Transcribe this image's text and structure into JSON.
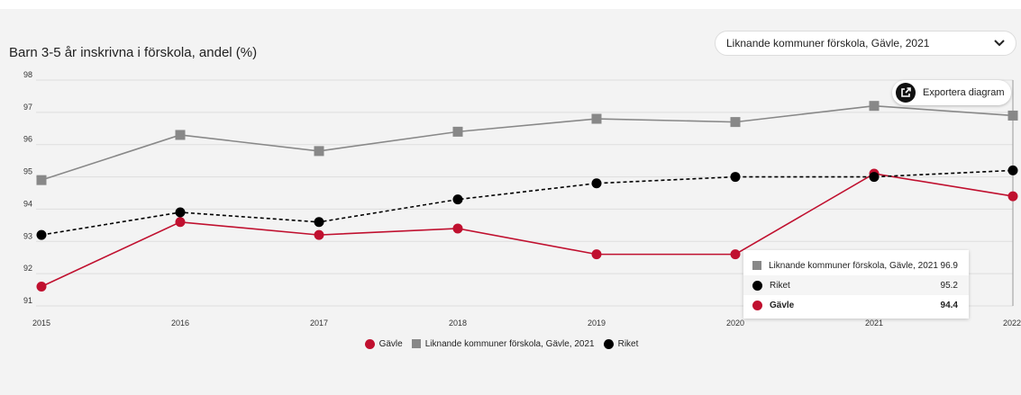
{
  "title": "Barn 3-5 år inskrivna i förskola, andel (%)",
  "dropdown": {
    "label": "Liknande kommuner förskola, Gävle, 2021"
  },
  "export": {
    "label": "Exportera diagram"
  },
  "colors": {
    "gavle": "#c0102f",
    "liknande": "#888888",
    "riket": "#000000"
  },
  "chart_data": {
    "type": "line",
    "title": "Barn 3-5 år inskrivna i förskola, andel (%)",
    "x": [
      "2015",
      "2016",
      "2017",
      "2018",
      "2019",
      "2020",
      "2021",
      "2022"
    ],
    "ylim": [
      91,
      98
    ],
    "yticks": [
      "91",
      "92",
      "93",
      "94",
      "95",
      "96",
      "97",
      "98"
    ],
    "grid": true,
    "legend_position": "bottom",
    "series": [
      {
        "name": "Gävle",
        "marker": "circle",
        "style": "solid",
        "color": "#c0102f",
        "values": [
          91.6,
          93.6,
          93.2,
          93.4,
          92.6,
          92.6,
          95.1,
          94.4
        ]
      },
      {
        "name": "Liknande kommuner förskola, Gävle, 2021",
        "marker": "square",
        "style": "solid",
        "color": "#888888",
        "values": [
          94.9,
          96.3,
          95.8,
          96.4,
          96.8,
          96.7,
          97.2,
          96.9
        ]
      },
      {
        "name": "Riket",
        "marker": "circle",
        "style": "dashed",
        "color": "#000000",
        "values": [
          93.2,
          93.9,
          93.6,
          94.3,
          94.8,
          95.0,
          95.0,
          95.2
        ]
      }
    ]
  },
  "legend": [
    {
      "label": "Gävle",
      "marker": "circle",
      "color": "#c0102f"
    },
    {
      "label": "Liknande kommuner förskola, Gävle, 2021",
      "marker": "square",
      "color": "#888888"
    },
    {
      "label": "Riket",
      "marker": "circle",
      "color": "#000000"
    }
  ],
  "tooltip": {
    "rows": [
      {
        "name": "Liknande kommuner förskola, Gävle, 2021",
        "value": "96.9",
        "marker": "square",
        "color": "#888888"
      },
      {
        "name": "Riket",
        "value": "95.2",
        "marker": "circle",
        "color": "#000000"
      },
      {
        "name": "Gävle",
        "value": "94.4",
        "marker": "circle",
        "color": "#c0102f"
      }
    ]
  }
}
